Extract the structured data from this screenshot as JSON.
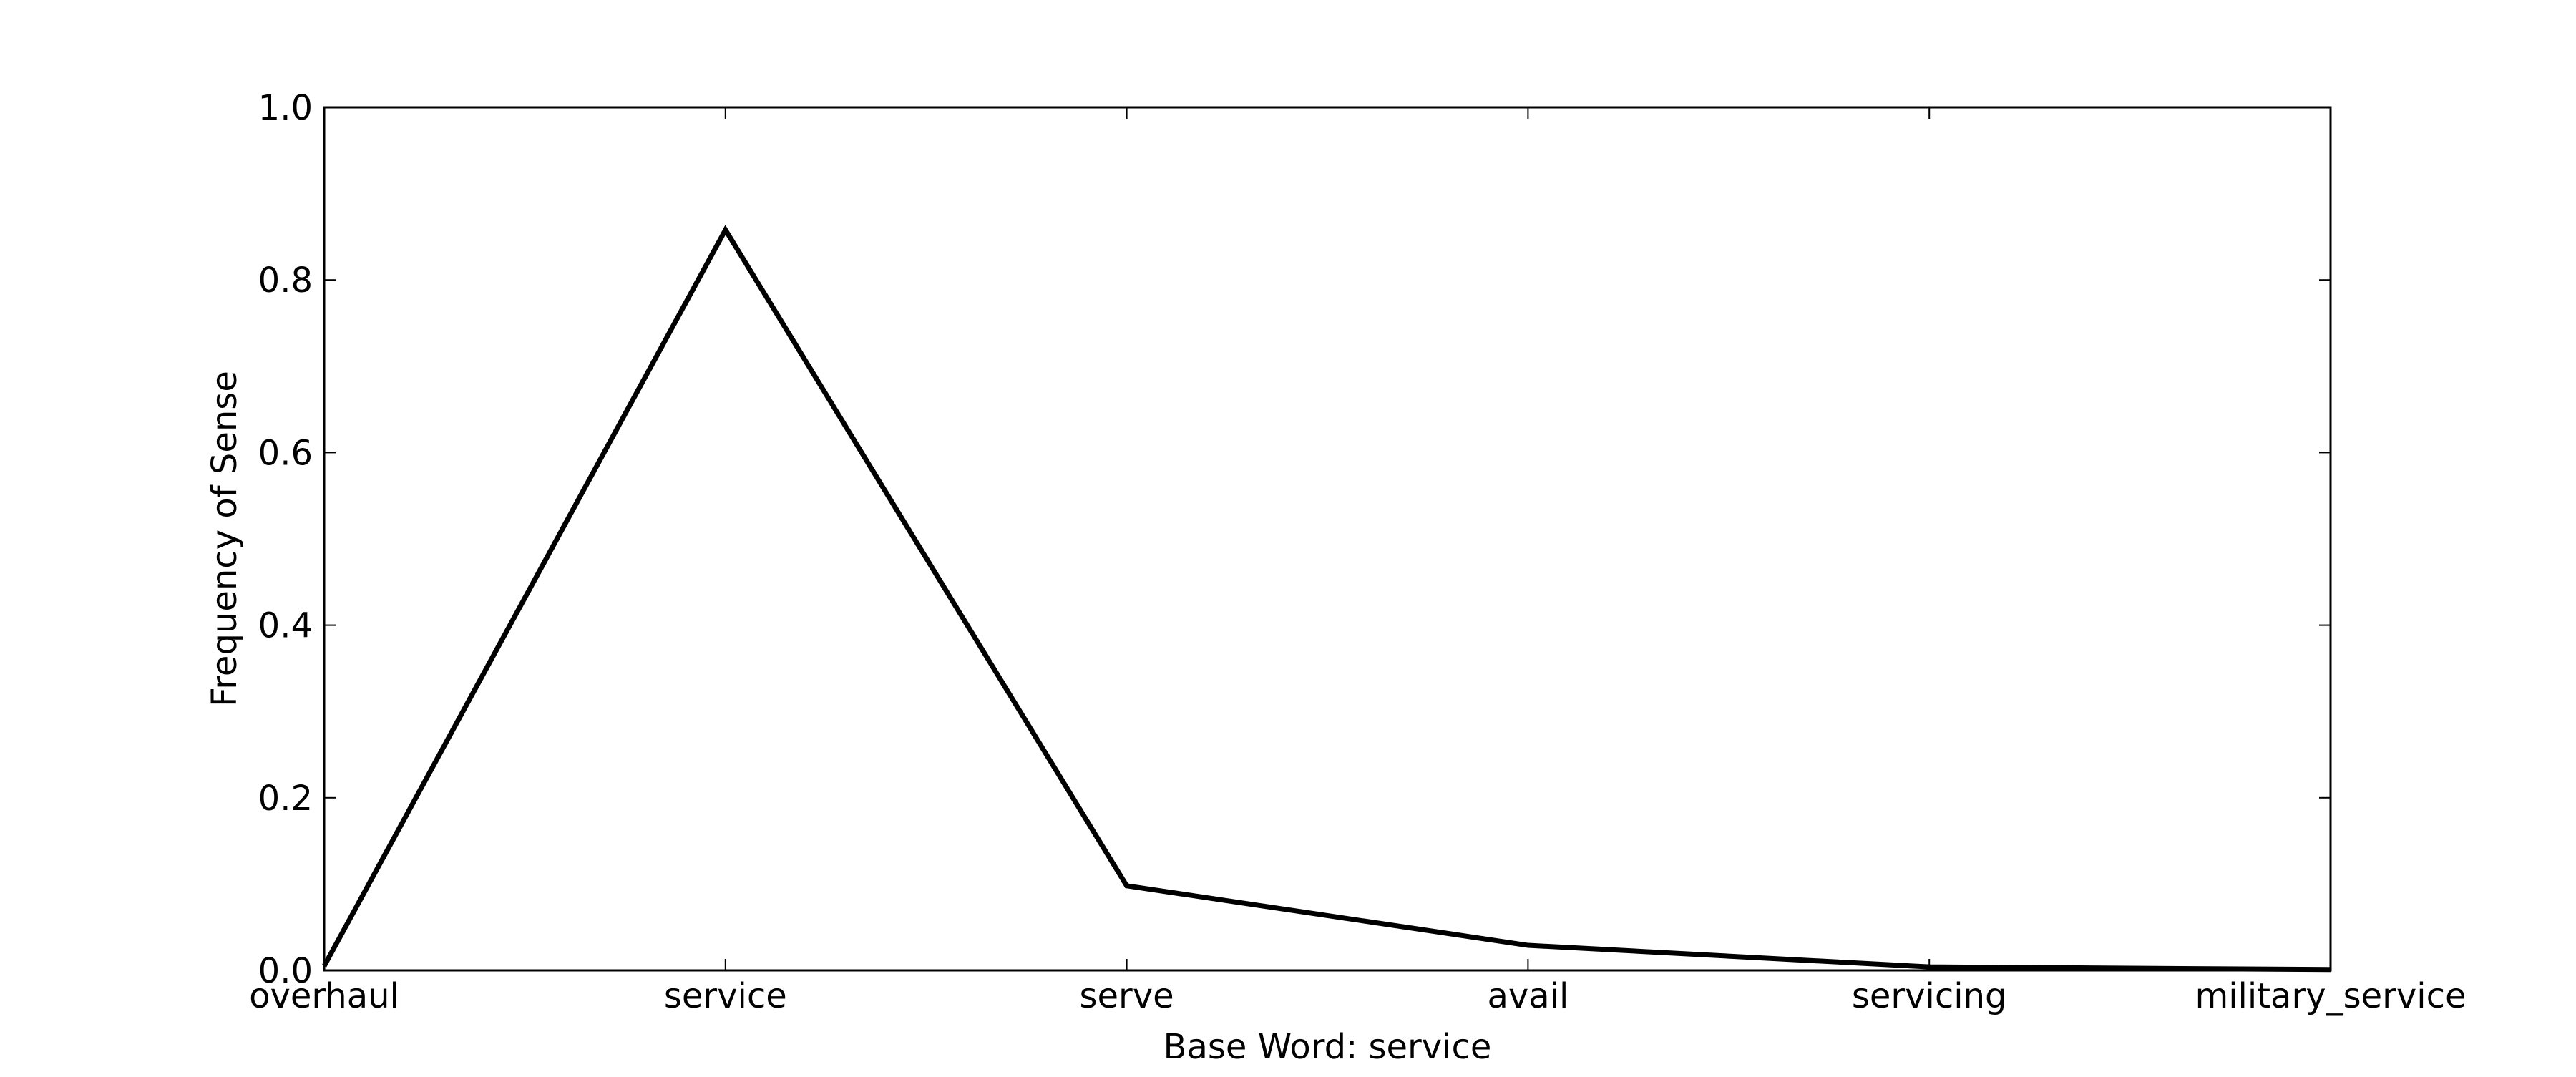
{
  "chart_data": {
    "type": "line",
    "categories": [
      "overhaul",
      "service",
      "serve",
      "avail",
      "servicing",
      "military_service"
    ],
    "series": [
      {
        "values": [
          0.005,
          0.858,
          0.098,
          0.029,
          0.004,
          0.001
        ]
      }
    ],
    "title": "",
    "xlabel": "Base Word: service",
    "ylabel": "Frequency of Sense",
    "ylim": [
      0.0,
      1.0
    ],
    "yticks": [
      0.0,
      0.2,
      0.4,
      0.6,
      0.8,
      1.0
    ],
    "ytick_labels": [
      "0.0",
      "0.2",
      "0.4",
      "0.6",
      "0.8",
      "1.0"
    ],
    "grid": false,
    "legend": "none",
    "line_color": "#000000"
  }
}
